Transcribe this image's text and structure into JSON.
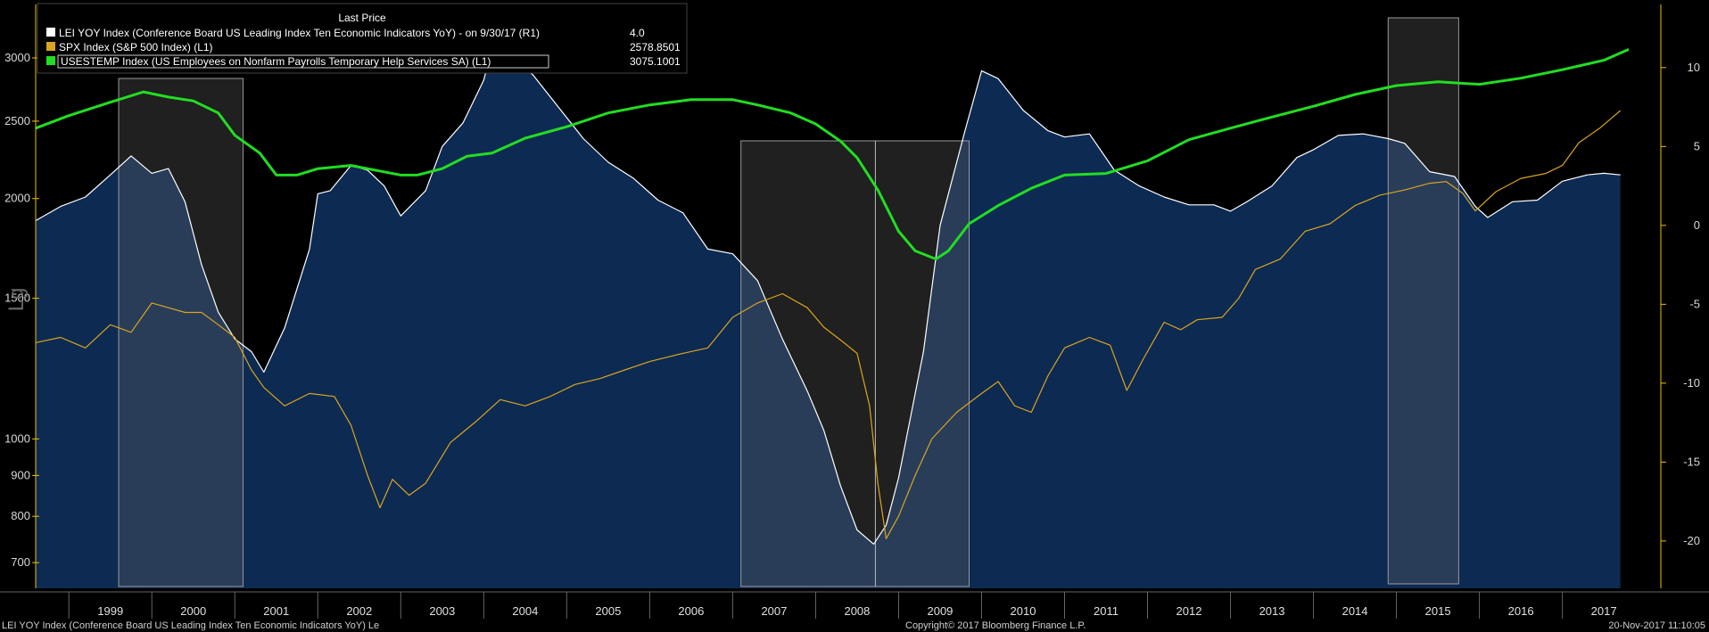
{
  "legend": {
    "header": "Last Price",
    "entries": [
      {
        "label": "LEI YOY Index (Conference Board US Leading Index Ten Economic Indicators YoY) -  on 9/30/17  (R1)",
        "value": "4.0",
        "color": "#ffffff"
      },
      {
        "label": "SPX Index (S&P 500 Index)  (L1)",
        "value": "2578.8501",
        "color": "#d9a520"
      },
      {
        "label": "USESTEMP Index (US Employees on Nonfarm Payrolls Temporary Help Services SA)  (L1)",
        "value": "3075.1001",
        "color": "#22dd22"
      }
    ]
  },
  "axis": {
    "left_scale_label": "Lg"
  },
  "footer": {
    "left": "LEI YOY Index (Conference Board US Leading Index Ten Economic Indicators YoY) Le",
    "center": "Copyright© 2017 Bloomberg Finance L.P.",
    "right": "20-Nov-2017 11:10:05"
  },
  "colors": {
    "background": "#000000",
    "lei_area": "#0d2a52",
    "lei_line": "#ffffff",
    "spx": "#d9a520",
    "temp": "#22dd22",
    "recession": "#6a6a6a",
    "axis": "#f0c000"
  },
  "chart_data": {
    "type": "line",
    "title": "",
    "x_range": [
      1998.6,
      2017.95
    ],
    "left_axis": {
      "scale": "log",
      "range": [
        650,
        3500
      ],
      "ticks": [
        700,
        800,
        900,
        1000,
        1500,
        2000,
        2500,
        3000
      ]
    },
    "right_axis": {
      "scale": "linear",
      "range": [
        -23,
        14
      ],
      "ticks": [
        -20,
        -15,
        -10,
        -5,
        0,
        5,
        10
      ]
    },
    "year_labels": [
      "1999",
      "2000",
      "2001",
      "2002",
      "2003",
      "2004",
      "2005",
      "2006",
      "2007",
      "2008",
      "2009",
      "2010",
      "2011",
      "2012",
      "2013",
      "2014",
      "2015",
      "2016",
      "2017"
    ],
    "shaded_periods": [
      {
        "start": 1999.6,
        "end": 2001.1
      },
      {
        "start": 2007.1,
        "end": 2009.85
      },
      {
        "start": 2014.9,
        "end": 2015.75
      }
    ],
    "shaded_divider": 2008.72,
    "series": [
      {
        "name": "LEI YOY Index (Conference Board US Leading Index Ten Economic Indicators YoY)",
        "axis": "right",
        "style": "area",
        "x": [
          1998.6,
          1998.9,
          1999.2,
          1999.5,
          1999.75,
          2000.0,
          2000.2,
          2000.4,
          2000.6,
          2000.8,
          2001.0,
          2001.2,
          2001.35,
          2001.6,
          2001.9,
          2002.0,
          2002.15,
          2002.4,
          2002.6,
          2002.8,
          2003.0,
          2003.3,
          2003.5,
          2003.75,
          2004.0,
          2004.1,
          2004.3,
          2004.6,
          2004.9,
          2005.2,
          2005.5,
          2005.8,
          2006.1,
          2006.4,
          2006.7,
          2007.0,
          2007.3,
          2007.6,
          2007.9,
          2008.1,
          2008.3,
          2008.5,
          2008.7,
          2008.85,
          2009.0,
          2009.3,
          2009.5,
          2009.8,
          2010.0,
          2010.2,
          2010.5,
          2010.8,
          2011.0,
          2011.3,
          2011.6,
          2011.9,
          2012.2,
          2012.5,
          2012.8,
          2013.0,
          2013.2,
          2013.5,
          2013.8,
          2014.0,
          2014.3,
          2014.6,
          2014.9,
          2015.1,
          2015.4,
          2015.7,
          2015.95,
          2016.1,
          2016.4,
          2016.7,
          2017.0,
          2017.3,
          2017.5,
          2017.7
        ],
        "values": [
          0.3,
          1.2,
          1.8,
          3.2,
          4.4,
          3.3,
          3.6,
          1.5,
          -2.5,
          -5.5,
          -7.2,
          -8.0,
          -9.3,
          -6.5,
          -1.5,
          2.0,
          2.2,
          3.8,
          3.5,
          2.5,
          0.6,
          2.2,
          5.0,
          6.5,
          9.2,
          11.2,
          11.0,
          9.5,
          7.5,
          5.5,
          4.0,
          3.0,
          1.6,
          0.8,
          -1.5,
          -1.8,
          -3.5,
          -7.2,
          -10.5,
          -13.0,
          -16.5,
          -19.3,
          -20.2,
          -19.0,
          -16.0,
          -8.0,
          0.0,
          6.0,
          9.8,
          9.3,
          7.3,
          6.0,
          5.6,
          5.8,
          3.5,
          2.5,
          1.8,
          1.3,
          1.3,
          0.9,
          1.5,
          2.5,
          4.3,
          4.8,
          5.7,
          5.8,
          5.5,
          5.2,
          3.4,
          3.1,
          1.2,
          0.5,
          1.5,
          1.6,
          2.8,
          3.2,
          3.3,
          3.2
        ]
      },
      {
        "name": "SPX Index (S&P 500 Index)",
        "axis": "left",
        "style": "line",
        "x": [
          1998.6,
          1998.9,
          1999.2,
          1999.5,
          1999.75,
          2000.0,
          2000.2,
          2000.4,
          2000.6,
          2000.8,
          2001.0,
          2001.2,
          2001.35,
          2001.6,
          2001.9,
          2002.2,
          2002.4,
          2002.6,
          2002.75,
          2002.9,
          2003.1,
          2003.3,
          2003.6,
          2003.9,
          2004.2,
          2004.5,
          2004.8,
          2005.1,
          2005.4,
          2005.7,
          2006.0,
          2006.4,
          2006.7,
          2007.0,
          2007.3,
          2007.6,
          2007.9,
          2008.1,
          2008.3,
          2008.5,
          2008.65,
          2008.75,
          2008.85,
          2009.0,
          2009.2,
          2009.4,
          2009.7,
          2010.0,
          2010.2,
          2010.4,
          2010.6,
          2010.8,
          2011.0,
          2011.3,
          2011.55,
          2011.75,
          2011.95,
          2012.2,
          2012.4,
          2012.6,
          2012.9,
          2013.1,
          2013.3,
          2013.6,
          2013.9,
          2014.2,
          2014.5,
          2014.8,
          2015.1,
          2015.4,
          2015.6,
          2015.8,
          2015.95,
          2016.2,
          2016.5,
          2016.8,
          2017.0,
          2017.2,
          2017.45,
          2017.7
        ],
        "values": [
          1320,
          1340,
          1300,
          1390,
          1360,
          1480,
          1460,
          1440,
          1440,
          1390,
          1340,
          1220,
          1160,
          1100,
          1140,
          1130,
          1040,
          900,
          820,
          890,
          850,
          880,
          990,
          1050,
          1120,
          1100,
          1130,
          1170,
          1190,
          1220,
          1250,
          1280,
          1300,
          1420,
          1480,
          1520,
          1460,
          1380,
          1330,
          1280,
          1100,
          880,
          750,
          800,
          900,
          1000,
          1080,
          1140,
          1180,
          1100,
          1080,
          1200,
          1300,
          1340,
          1310,
          1150,
          1260,
          1400,
          1370,
          1410,
          1420,
          1500,
          1630,
          1680,
          1820,
          1860,
          1960,
          2020,
          2050,
          2090,
          2100,
          2030,
          1930,
          2040,
          2120,
          2150,
          2200,
          2350,
          2450,
          2578
        ]
      },
      {
        "name": "USESTEMP Index (US Employees on Nonfarm Payrolls Temporary Help Services SA)",
        "axis": "left",
        "style": "line",
        "x": [
          1998.6,
          1999.0,
          1999.5,
          1999.9,
          2000.2,
          2000.5,
          2000.8,
          2001.0,
          2001.3,
          2001.5,
          2001.75,
          2002.0,
          2002.4,
          2002.8,
          2003.0,
          2003.2,
          2003.5,
          2003.8,
          2004.1,
          2004.5,
          2005.0,
          2005.5,
          2006.0,
          2006.5,
          2007.0,
          2007.3,
          2007.7,
          2008.0,
          2008.3,
          2008.5,
          2008.75,
          2009.0,
          2009.2,
          2009.45,
          2009.6,
          2009.85,
          2010.2,
          2010.6,
          2011.0,
          2011.5,
          2012.0,
          2012.5,
          2013.0,
          2013.5,
          2014.0,
          2014.5,
          2015.0,
          2015.5,
          2016.0,
          2016.5,
          2017.0,
          2017.5,
          2017.8
        ],
        "values": [
          2450,
          2540,
          2640,
          2720,
          2680,
          2650,
          2560,
          2400,
          2280,
          2140,
          2140,
          2180,
          2200,
          2160,
          2140,
          2140,
          2180,
          2260,
          2280,
          2380,
          2460,
          2560,
          2620,
          2660,
          2660,
          2620,
          2560,
          2480,
          2360,
          2250,
          2050,
          1820,
          1720,
          1680,
          1720,
          1860,
          1960,
          2060,
          2140,
          2150,
          2230,
          2370,
          2450,
          2530,
          2610,
          2700,
          2770,
          2800,
          2780,
          2830,
          2900,
          2980,
          3075
        ]
      }
    ]
  }
}
